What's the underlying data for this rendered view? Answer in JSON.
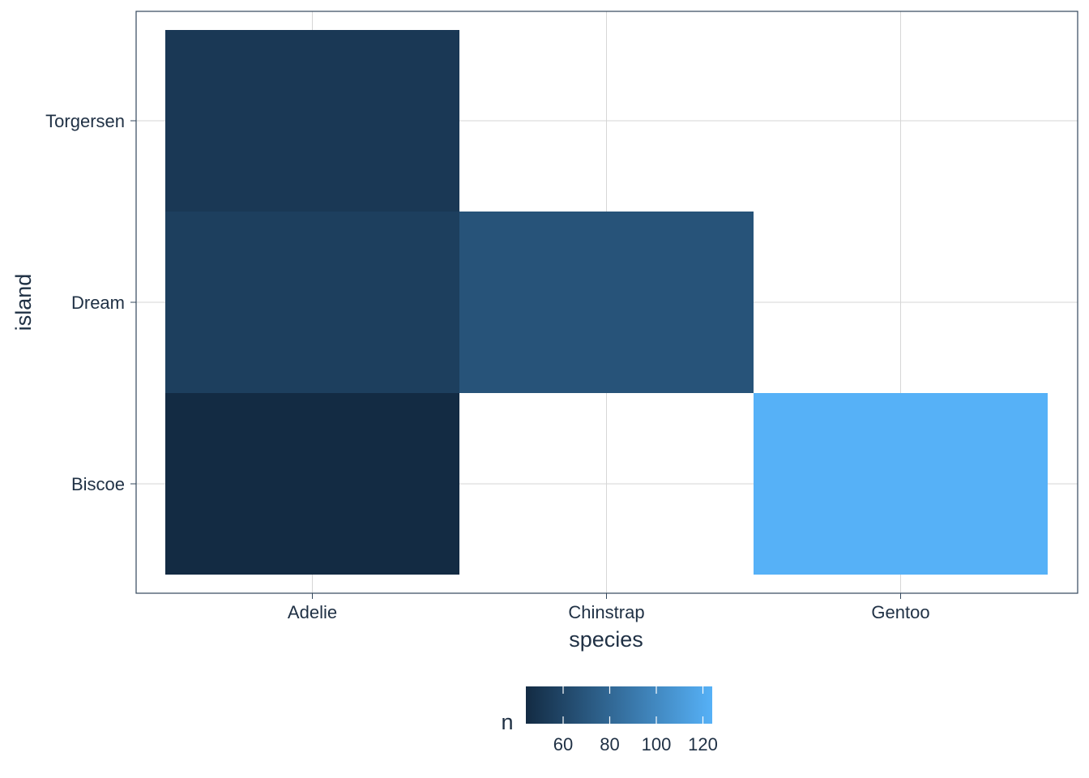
{
  "chart_data": {
    "type": "heatmap",
    "title": "",
    "xlabel": "species",
    "ylabel": "island",
    "x_categories": [
      "Adelie",
      "Chinstrap",
      "Gentoo"
    ],
    "y_categories": [
      "Biscoe",
      "Dream",
      "Torgersen"
    ],
    "cells": [
      {
        "x": "Adelie",
        "y": "Biscoe",
        "value": 44
      },
      {
        "x": "Adelie",
        "y": "Dream",
        "value": 56
      },
      {
        "x": "Adelie",
        "y": "Torgersen",
        "value": 52
      },
      {
        "x": "Chinstrap",
        "y": "Dream",
        "value": 68
      },
      {
        "x": "Gentoo",
        "y": "Biscoe",
        "value": 124
      }
    ],
    "legend": {
      "title": "n",
      "placement": "bottom",
      "range": [
        44,
        124
      ],
      "ticks": [
        60,
        80,
        100,
        120
      ],
      "color_low": "#132B43",
      "color_high": "#56B1F7"
    },
    "grid": true,
    "colors": {
      "axis_text": "#1f3044",
      "grid": "#d6d6d6",
      "panel_border": "#33475c"
    }
  }
}
